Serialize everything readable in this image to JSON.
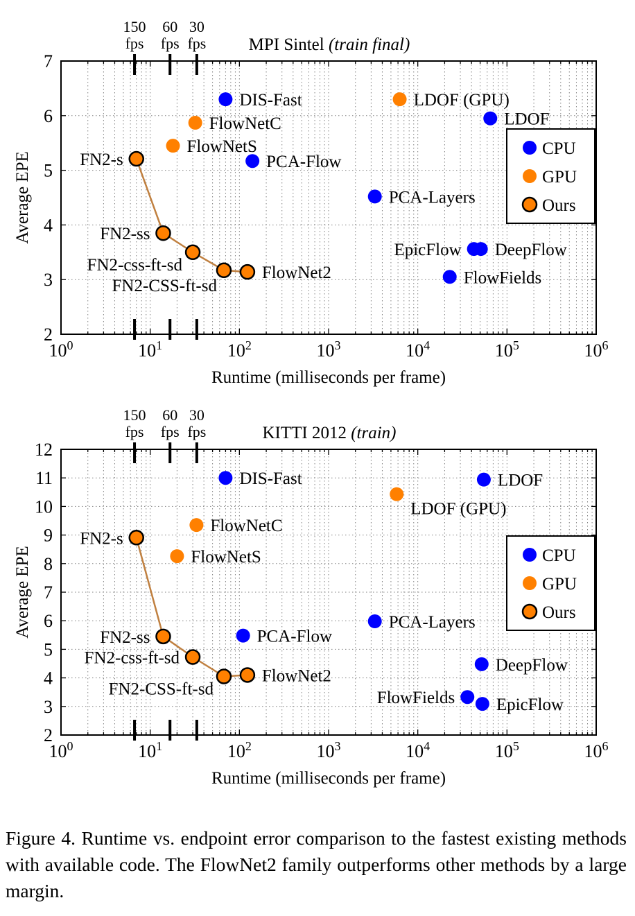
{
  "colors": {
    "cpu": "#0000ff",
    "gpu": "#ff8000",
    "ours": "#ff8000",
    "ours_line": "#c08040",
    "grid": "#808080"
  },
  "caption": "Figure 4. Runtime vs.  endpoint error comparison to the fastest existing methods with available code. The FlowNet2 family outperforms other methods by a large margin.",
  "chart_data": [
    {
      "type": "scatter",
      "title": "MPI Sintel",
      "title_italic": "(train final)",
      "xlabel": "Runtime (milliseconds per frame)",
      "ylabel": "Average EPE",
      "xscale": "log",
      "xlim": [
        1,
        1000000
      ],
      "ylim": [
        2,
        7
      ],
      "xticks": [
        {
          "value": 1,
          "base": "10",
          "exp": "0"
        },
        {
          "value": 10,
          "base": "10",
          "exp": "1"
        },
        {
          "value": 100,
          "base": "10",
          "exp": "2"
        },
        {
          "value": 1000,
          "base": "10",
          "exp": "3"
        },
        {
          "value": 10000,
          "base": "10",
          "exp": "4"
        },
        {
          "value": 100000,
          "base": "10",
          "exp": "5"
        },
        {
          "value": 1000000,
          "base": "10",
          "exp": "6"
        }
      ],
      "yticks": [
        "2",
        "3",
        "4",
        "5",
        "6",
        "7"
      ],
      "grid": true,
      "fps_markers": [
        {
          "value": 6.67,
          "num": "150",
          "unit": "fps"
        },
        {
          "value": 16.67,
          "num": "60",
          "unit": "fps"
        },
        {
          "value": 33.3,
          "num": "30",
          "unit": "fps"
        }
      ],
      "legend": {
        "placement": "right",
        "items": [
          {
            "label": "CPU",
            "kind": "cpu"
          },
          {
            "label": "GPU",
            "kind": "gpu"
          },
          {
            "label": "Ours",
            "kind": "ours"
          }
        ]
      },
      "points": [
        {
          "label": "DIS-Fast",
          "x": 70,
          "y": 6.3,
          "kind": "cpu",
          "anchor": "right"
        },
        {
          "label": "LDOF (GPU)",
          "x": 6270,
          "y": 6.3,
          "kind": "gpu",
          "anchor": "right"
        },
        {
          "label": "LDOF",
          "x": 65000,
          "y": 5.95,
          "kind": "cpu",
          "anchor": "right"
        },
        {
          "label": "FlowNetC",
          "x": 32,
          "y": 5.87,
          "kind": "gpu",
          "anchor": "right"
        },
        {
          "label": "FlowNetS",
          "x": 18,
          "y": 5.45,
          "kind": "gpu",
          "anchor": "right"
        },
        {
          "label": "PCA-Flow",
          "x": 140,
          "y": 5.17,
          "kind": "cpu",
          "anchor": "right"
        },
        {
          "label": "PCA-Layers",
          "x": 3300,
          "y": 4.52,
          "kind": "cpu",
          "anchor": "right"
        },
        {
          "label": "EpicFlow",
          "x": 42600,
          "y": 3.56,
          "kind": "cpu",
          "anchor": "left"
        },
        {
          "label": "DeepFlow",
          "x": 51000,
          "y": 3.56,
          "kind": "cpu",
          "anchor": "right"
        },
        {
          "label": "FlowFields",
          "x": 22800,
          "y": 3.05,
          "kind": "cpu",
          "anchor": "right"
        }
      ],
      "ours": [
        {
          "label": "FN2-s",
          "x": 7,
          "y": 5.21,
          "anchor": "left"
        },
        {
          "label": "FN2-ss",
          "x": 14,
          "y": 3.85,
          "anchor": "left"
        },
        {
          "label": "FN2-css-ft-sd",
          "x": 30,
          "y": 3.5,
          "anchor": "left-below"
        },
        {
          "label": "FN2-CSS-ft-sd",
          "x": 67,
          "y": 3.17,
          "anchor": "left-below2"
        },
        {
          "label": "FlowNet2",
          "x": 123,
          "y": 3.14,
          "anchor": "right"
        }
      ]
    },
    {
      "type": "scatter",
      "title": "KITTI 2012",
      "title_italic": "(train)",
      "xlabel": "Runtime (milliseconds per frame)",
      "ylabel": "Average EPE",
      "xscale": "log",
      "xlim": [
        1,
        1000000
      ],
      "ylim": [
        2,
        12
      ],
      "xticks": [
        {
          "value": 1,
          "base": "10",
          "exp": "0"
        },
        {
          "value": 10,
          "base": "10",
          "exp": "1"
        },
        {
          "value": 100,
          "base": "10",
          "exp": "2"
        },
        {
          "value": 1000,
          "base": "10",
          "exp": "3"
        },
        {
          "value": 10000,
          "base": "10",
          "exp": "4"
        },
        {
          "value": 100000,
          "base": "10",
          "exp": "5"
        },
        {
          "value": 1000000,
          "base": "10",
          "exp": "6"
        }
      ],
      "yticks": [
        "2",
        "3",
        "4",
        "5",
        "6",
        "7",
        "8",
        "9",
        "10",
        "11",
        "12"
      ],
      "grid": true,
      "fps_markers": [
        {
          "value": 6.67,
          "num": "150",
          "unit": "fps"
        },
        {
          "value": 16.67,
          "num": "60",
          "unit": "fps"
        },
        {
          "value": 33.3,
          "num": "30",
          "unit": "fps"
        }
      ],
      "legend": {
        "placement": "right",
        "items": [
          {
            "label": "CPU",
            "kind": "cpu"
          },
          {
            "label": "GPU",
            "kind": "gpu"
          },
          {
            "label": "Ours",
            "kind": "ours"
          }
        ]
      },
      "points": [
        {
          "label": "DIS-Fast",
          "x": 70,
          "y": 11.0,
          "kind": "cpu",
          "anchor": "right"
        },
        {
          "label": "LDOF",
          "x": 55000,
          "y": 10.94,
          "kind": "cpu",
          "anchor": "right"
        },
        {
          "label": "LDOF (GPU)",
          "x": 5800,
          "y": 10.43,
          "kind": "gpu",
          "anchor": "right-below"
        },
        {
          "label": "FlowNetC",
          "x": 33,
          "y": 9.35,
          "kind": "gpu",
          "anchor": "right"
        },
        {
          "label": "FlowNetS",
          "x": 20,
          "y": 8.26,
          "kind": "gpu",
          "anchor": "right"
        },
        {
          "label": "PCA-Layers",
          "x": 3300,
          "y": 5.98,
          "kind": "cpu",
          "anchor": "right"
        },
        {
          "label": "PCA-Flow",
          "x": 110,
          "y": 5.48,
          "kind": "cpu",
          "anchor": "right"
        },
        {
          "label": "DeepFlow",
          "x": 52000,
          "y": 4.48,
          "kind": "cpu",
          "anchor": "right"
        },
        {
          "label": "FlowFields",
          "x": 36000,
          "y": 3.33,
          "kind": "cpu",
          "anchor": "left"
        },
        {
          "label": "EpicFlow",
          "x": 53000,
          "y": 3.09,
          "kind": "cpu",
          "anchor": "right"
        }
      ],
      "ours": [
        {
          "label": "FN2-s",
          "x": 7,
          "y": 8.91,
          "anchor": "left"
        },
        {
          "label": "FN2-ss",
          "x": 14,
          "y": 5.45,
          "anchor": "left"
        },
        {
          "label": "FN2-css-ft-sd",
          "x": 30,
          "y": 4.73,
          "anchor": "left"
        },
        {
          "label": "FN2-CSS-ft-sd",
          "x": 67,
          "y": 4.05,
          "anchor": "left-below"
        },
        {
          "label": "FlowNet2",
          "x": 123,
          "y": 4.1,
          "anchor": "right"
        }
      ]
    }
  ]
}
